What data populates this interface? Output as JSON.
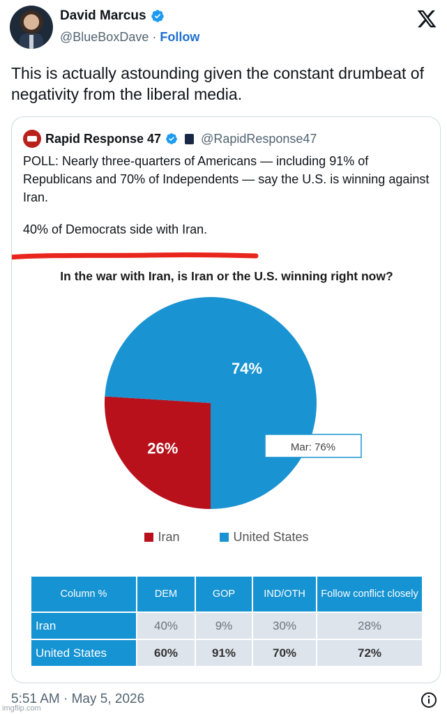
{
  "author": {
    "display_name": "David Marcus",
    "handle": "@BlueBoxDave",
    "separator": "·",
    "follow_label": "Follow"
  },
  "tweet": {
    "text": "This is actually astounding given the constant drumbeat of negativity from the liberal media.",
    "timestamp": "5:51 AM · May 5, 2026"
  },
  "quoted": {
    "display_name": "Rapid Response 47",
    "handle": "@RapidResponse47",
    "paragraph1": "POLL: Nearly three-quarters of Americans — including 91% of Republicans and 70% of Independents — say the U.S. is winning against Iran.",
    "paragraph2": "40% of Democrats side with Iran."
  },
  "chart_data": {
    "type": "pie",
    "title": "In the war with Iran, is Iran or the U.S. winning right now?",
    "categories": [
      "Iran",
      "United States"
    ],
    "values": [
      26,
      74
    ],
    "labels": [
      "26%",
      "74%"
    ],
    "colors": [
      "#b8111b",
      "#1993d1"
    ],
    "annotation": "Mar: 76%",
    "legend_position": "bottom",
    "table": {
      "headers": [
        "Column %",
        "DEM",
        "GOP",
        "IND/OTH",
        "Follow conflict closely"
      ],
      "rows": [
        {
          "label": "Iran",
          "cells": [
            "40%",
            "9%",
            "30%",
            "28%"
          ]
        },
        {
          "label": "United States",
          "cells": [
            "60%",
            "91%",
            "70%",
            "72%"
          ]
        }
      ]
    }
  },
  "colors": {
    "link_blue": "#1d6fd1",
    "verified_blue": "#1d9bf0",
    "highlight_red": "#e8261d"
  },
  "icons": [
    "x-logo-icon",
    "verified-badge-icon",
    "info-icon"
  ],
  "watermark": "imgflip.com"
}
